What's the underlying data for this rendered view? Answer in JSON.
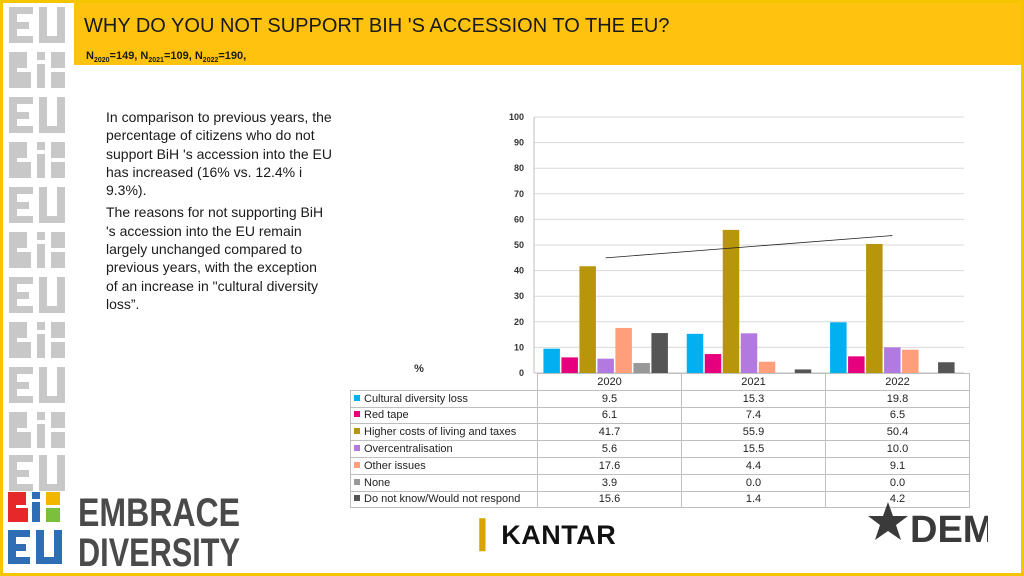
{
  "header": {
    "title": "WHY DO YOU NOT SUPPORT BIH 'S ACCESSION TO THE EU?",
    "sample": [
      {
        "prefix": "N",
        "sub": "2020",
        "value": "=149, "
      },
      {
        "prefix": "N",
        "sub": "2021",
        "value": "=109, "
      },
      {
        "prefix": "N",
        "sub": "2022",
        "value": "=190,"
      }
    ]
  },
  "text": {
    "p1": "In comparison to previous years, the percentage of citizens who do not support BiH 's accession into the EU has increased (16% vs. 12.4% i 9.3%).",
    "p2": "The reasons for not supporting BiH 's accession into the EU remain largely unchanged compared to previous years, with the exception of an increase in \"cultural diversity loss”."
  },
  "logos": {
    "embrace_line1": "EMBRACE",
    "embrace_line2": "DIVERSITY",
    "kantar": "KANTAR",
    "dem": "DEM"
  },
  "chart_data": {
    "type": "bar",
    "ylabel": "%",
    "ylim": [
      0,
      100
    ],
    "yticks": [
      0,
      10,
      20,
      30,
      40,
      50,
      60,
      70,
      80,
      90,
      100
    ],
    "grid": true,
    "trendline": true,
    "categories": [
      "2020",
      "2021",
      "2022"
    ],
    "series": [
      {
        "name": "Cultural diversity loss",
        "color": "#00b0f0",
        "values": [
          9.5,
          15.3,
          19.8
        ]
      },
      {
        "name": "Red tape",
        "color": "#e6007e",
        "values": [
          6.1,
          7.4,
          6.5
        ]
      },
      {
        "name": "Higher costs of living and taxes",
        "color": "#b8960c",
        "values": [
          41.7,
          55.9,
          50.4
        ]
      },
      {
        "name": "Overcentralisation",
        "color": "#b27ae0",
        "values": [
          5.6,
          15.5,
          10.0
        ]
      },
      {
        "name": "Other issues",
        "color": "#ff9e7a",
        "values": [
          17.6,
          4.4,
          9.1
        ]
      },
      {
        "name": "None",
        "color": "#999999",
        "values": [
          3.9,
          0.0,
          0.0
        ]
      },
      {
        "name": "Do not know/Would not respond",
        "color": "#555555",
        "values": [
          15.6,
          1.4,
          4.2
        ]
      }
    ]
  }
}
